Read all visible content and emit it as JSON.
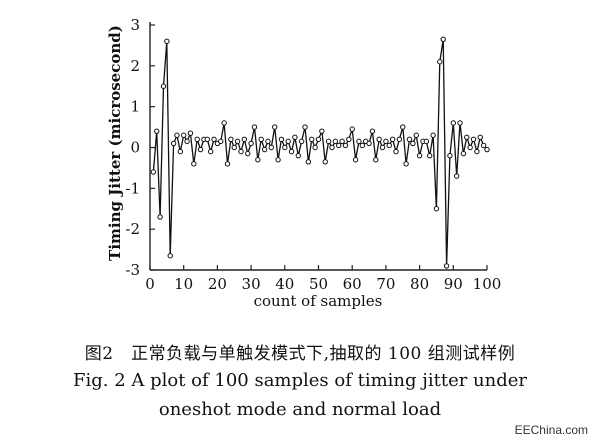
{
  "chart_data": {
    "type": "line",
    "title": "",
    "xlabel": "count of samples",
    "ylabel": "Timing Jitter (microsecond)",
    "xlim": [
      0,
      100
    ],
    "ylim": [
      -3,
      3
    ],
    "xticks": [
      "0",
      "10",
      "20",
      "30",
      "40",
      "50",
      "60",
      "70",
      "80",
      "90",
      "100"
    ],
    "yticks": [
      "3",
      "2",
      "1",
      "0",
      "-1",
      "-2",
      "-3"
    ],
    "grid": false,
    "marker": "open-circle",
    "series": [
      {
        "name": "",
        "x": [
          1,
          2,
          3,
          4,
          5,
          6,
          7,
          8,
          9,
          10,
          11,
          12,
          13,
          14,
          15,
          16,
          17,
          18,
          19,
          20,
          21,
          22,
          23,
          24,
          25,
          26,
          27,
          28,
          29,
          30,
          31,
          32,
          33,
          34,
          35,
          36,
          37,
          38,
          39,
          40,
          41,
          42,
          43,
          44,
          45,
          46,
          47,
          48,
          49,
          50,
          51,
          52,
          53,
          54,
          55,
          56,
          57,
          58,
          59,
          60,
          61,
          62,
          63,
          64,
          65,
          66,
          67,
          68,
          69,
          70,
          71,
          72,
          73,
          74,
          75,
          76,
          77,
          78,
          79,
          80,
          81,
          82,
          83,
          84,
          85,
          86,
          87,
          88,
          89,
          90,
          91,
          92,
          93,
          94,
          95,
          96,
          97,
          98,
          99,
          100
        ],
        "y": [
          -0.6,
          0.4,
          -1.7,
          1.5,
          2.6,
          -2.65,
          0.1,
          0.3,
          -0.1,
          0.3,
          0.15,
          0.35,
          -0.4,
          0.2,
          -0.05,
          0.2,
          0.2,
          -0.1,
          0.2,
          0.1,
          0.15,
          0.6,
          -0.4,
          0.2,
          0.0,
          0.15,
          -0.1,
          0.2,
          -0.15,
          0.1,
          0.5,
          -0.3,
          0.2,
          -0.05,
          0.15,
          0.0,
          0.5,
          -0.3,
          0.2,
          0.0,
          0.15,
          -0.1,
          0.25,
          -0.2,
          0.15,
          0.5,
          -0.35,
          0.2,
          0.0,
          0.2,
          0.4,
          -0.35,
          0.15,
          0.0,
          0.15,
          0.05,
          0.15,
          0.05,
          0.2,
          0.45,
          -0.3,
          0.15,
          0.05,
          0.15,
          0.1,
          0.4,
          -0.3,
          0.2,
          0.0,
          0.15,
          0.05,
          0.2,
          -0.1,
          0.2,
          0.5,
          -0.4,
          0.2,
          0.1,
          0.3,
          -0.2,
          0.15,
          0.15,
          -0.2,
          0.3,
          -1.5,
          2.1,
          2.65,
          -2.9,
          -0.2,
          0.6,
          -0.7,
          0.6,
          -0.15,
          0.25,
          0.0,
          0.2,
          -0.1,
          0.25,
          0.05,
          -0.05
        ]
      }
    ]
  },
  "captions": {
    "zh": "图2　正常负载与单触发模式下,抽取的 100 组测试样例",
    "en_line1": "Fig. 2   A plot of 100 samples of timing jitter under",
    "en_line2": "oneshot mode and normal load"
  },
  "watermark": "EEChina.com"
}
